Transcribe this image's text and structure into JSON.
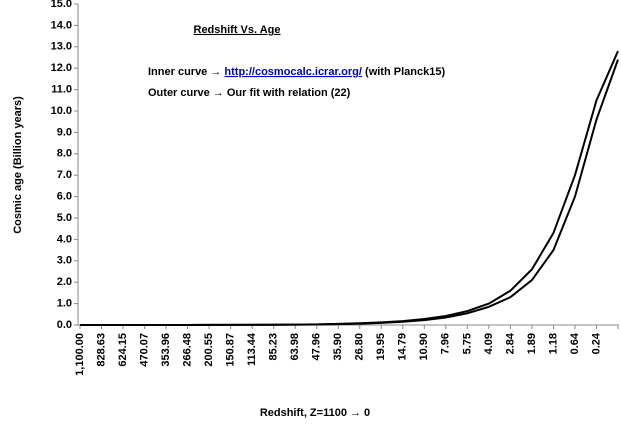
{
  "chart_data": {
    "type": "line",
    "title": "Redshift Vs. Age",
    "x_label": "Redshift, Z=1100 → 0",
    "y_label": "Cosmic age (Billion years)",
    "annotations": [
      {
        "text": "Inner curve →",
        "link": "http://cosmocalc.icrar.org/",
        "note": "(with Planck15)"
      },
      {
        "text": "Outer curve → Our fit  with relation (22)"
      }
    ],
    "categories": [
      "1,100.00",
      "828.63",
      "624.15",
      "470.07",
      "353.96",
      "266.48",
      "200.55",
      "150.87",
      "113.44",
      "85.23",
      "63.98",
      "47.96",
      "35.90",
      "26.80",
      "19.95",
      "14.79",
      "10.90",
      "7.96",
      "5.75",
      "4.09",
      "2.84",
      "1.89",
      "1.18",
      "0.64",
      "0.24",
      null
    ],
    "series": [
      {
        "name": "Inner curve",
        "color": "#000000",
        "values": [
          0.0004,
          0.0006,
          0.0009,
          0.0013,
          0.002,
          0.003,
          0.004,
          0.006,
          0.009,
          0.014,
          0.02,
          0.03,
          0.05,
          0.08,
          0.12,
          0.18,
          0.28,
          0.42,
          0.65,
          1.0,
          1.6,
          2.6,
          4.3,
          7.0,
          10.5,
          12.8
        ]
      },
      {
        "name": "Outer curve",
        "color": "#000000",
        "values": [
          0.0003,
          0.0005,
          0.0007,
          0.001,
          0.0015,
          0.0025,
          0.0035,
          0.005,
          0.007,
          0.011,
          0.016,
          0.025,
          0.04,
          0.065,
          0.1,
          0.15,
          0.23,
          0.35,
          0.55,
          0.85,
          1.3,
          2.1,
          3.5,
          6.0,
          9.6,
          12.4
        ]
      }
    ],
    "ylim": [
      0,
      15
    ],
    "yticks": [
      {
        "value": 0,
        "label": "0.0"
      },
      {
        "value": 1,
        "label": "1.0"
      },
      {
        "value": 2,
        "label": "2.0"
      },
      {
        "value": 3,
        "label": "3.0"
      },
      {
        "value": 4,
        "label": "4.0"
      },
      {
        "value": 5,
        "label": "5.0"
      },
      {
        "value": 6,
        "label": "6.0"
      },
      {
        "value": 7,
        "label": "7.0"
      },
      {
        "value": 8,
        "label": "8.0"
      },
      {
        "value": 9,
        "label": "9.0"
      },
      {
        "value": 10,
        "label": "10.0"
      },
      {
        "value": 11,
        "label": "11.0"
      },
      {
        "value": 12,
        "label": "12.0"
      },
      {
        "value": 13,
        "label": "13.0"
      },
      {
        "value": 14,
        "label": "14.0"
      },
      {
        "value": 15,
        "label": "15.0"
      }
    ]
  }
}
